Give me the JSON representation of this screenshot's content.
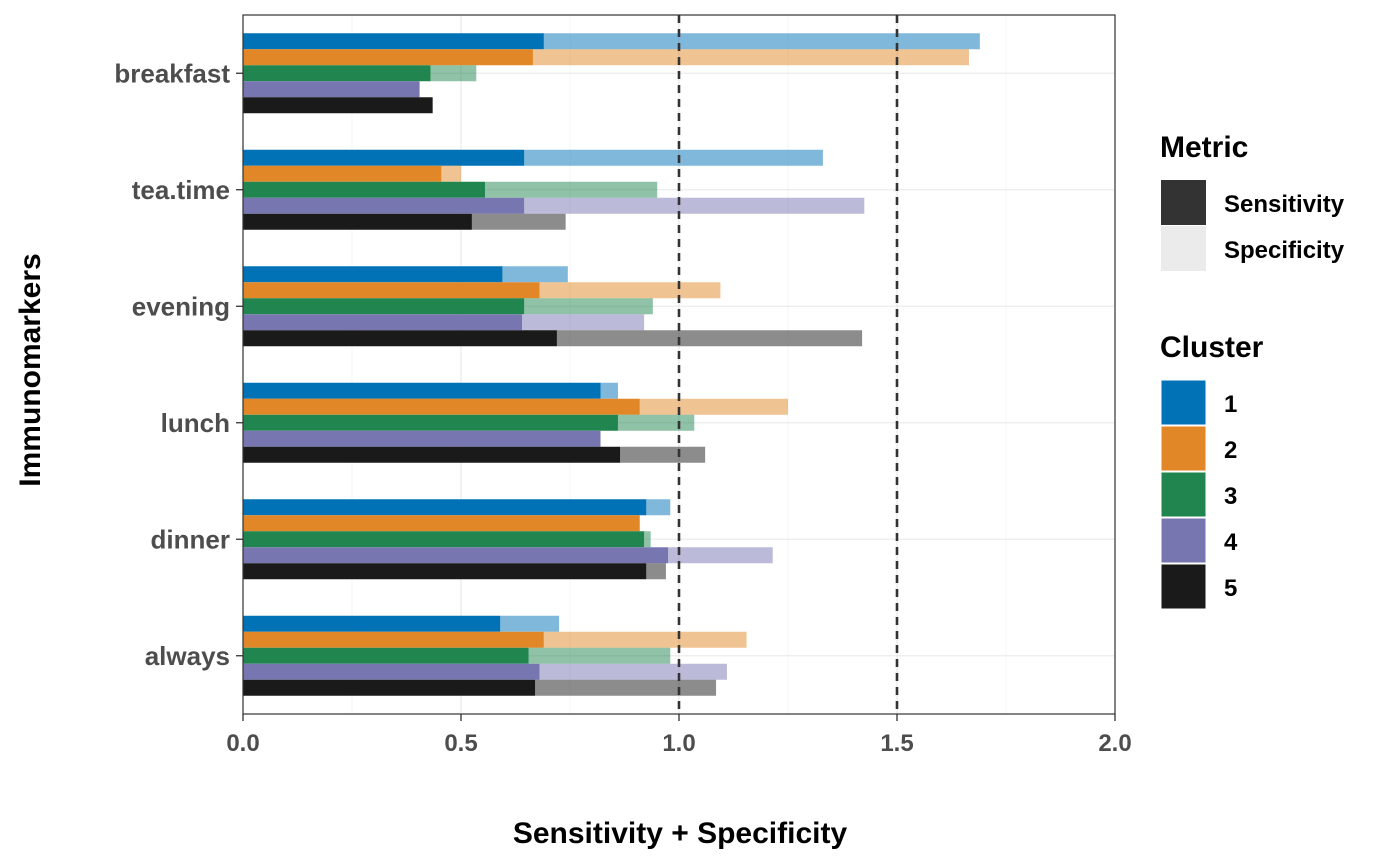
{
  "chart_data": {
    "type": "bar",
    "orientation": "horizontal",
    "stacked": true,
    "xlabel": "Sensitivity + Specificity",
    "ylabel": "Immunomarkers",
    "xlim": [
      0,
      2
    ],
    "x_ticks": [
      0,
      0.5,
      1,
      1.5,
      2
    ],
    "x_tick_labels": [
      "0.0",
      "0.5",
      "1.0",
      "1.5",
      "2.0"
    ],
    "reference_lines": [
      1.0,
      1.5
    ],
    "grid": true,
    "legend_position": "right",
    "categories": [
      "breakfast",
      "tea.time",
      "evening",
      "lunch",
      "dinner",
      "always"
    ],
    "metric_legend": {
      "title": "Metric",
      "items": [
        {
          "name": "Sensitivity",
          "color": "#333333"
        },
        {
          "name": "Specificity",
          "color": "#ebebeb"
        }
      ]
    },
    "cluster_legend": {
      "title": "Cluster",
      "items": [
        {
          "name": "1",
          "color": "#0072b5"
        },
        {
          "name": "2",
          "color": "#e18727"
        },
        {
          "name": "3",
          "color": "#20854e"
        },
        {
          "name": "4",
          "color": "#7876b1"
        },
        {
          "name": "5",
          "color": "#1a1a1a"
        }
      ]
    },
    "series": [
      {
        "cluster": "1",
        "sensitivity": [
          0.69,
          0.645,
          0.595,
          0.82,
          0.925,
          0.59
        ],
        "total": [
          1.69,
          1.33,
          0.745,
          0.86,
          0.98,
          0.725
        ]
      },
      {
        "cluster": "2",
        "sensitivity": [
          0.665,
          0.455,
          0.68,
          0.91,
          0.91,
          0.69
        ],
        "total": [
          1.665,
          0.5,
          1.095,
          1.25,
          0.91,
          1.155
        ]
      },
      {
        "cluster": "3",
        "sensitivity": [
          0.43,
          0.555,
          0.645,
          0.86,
          0.92,
          0.655
        ],
        "total": [
          0.535,
          0.95,
          0.94,
          1.035,
          0.935,
          0.98
        ]
      },
      {
        "cluster": "4",
        "sensitivity": [
          0.405,
          0.645,
          0.64,
          0.82,
          0.975,
          0.68
        ],
        "total": [
          0.405,
          1.425,
          0.92,
          0.82,
          1.215,
          1.11
        ]
      },
      {
        "cluster": "5",
        "sensitivity": [
          0.435,
          0.525,
          0.72,
          0.865,
          0.925,
          0.67
        ],
        "total": [
          0.435,
          0.74,
          1.42,
          1.06,
          0.97,
          1.085
        ]
      }
    ]
  }
}
